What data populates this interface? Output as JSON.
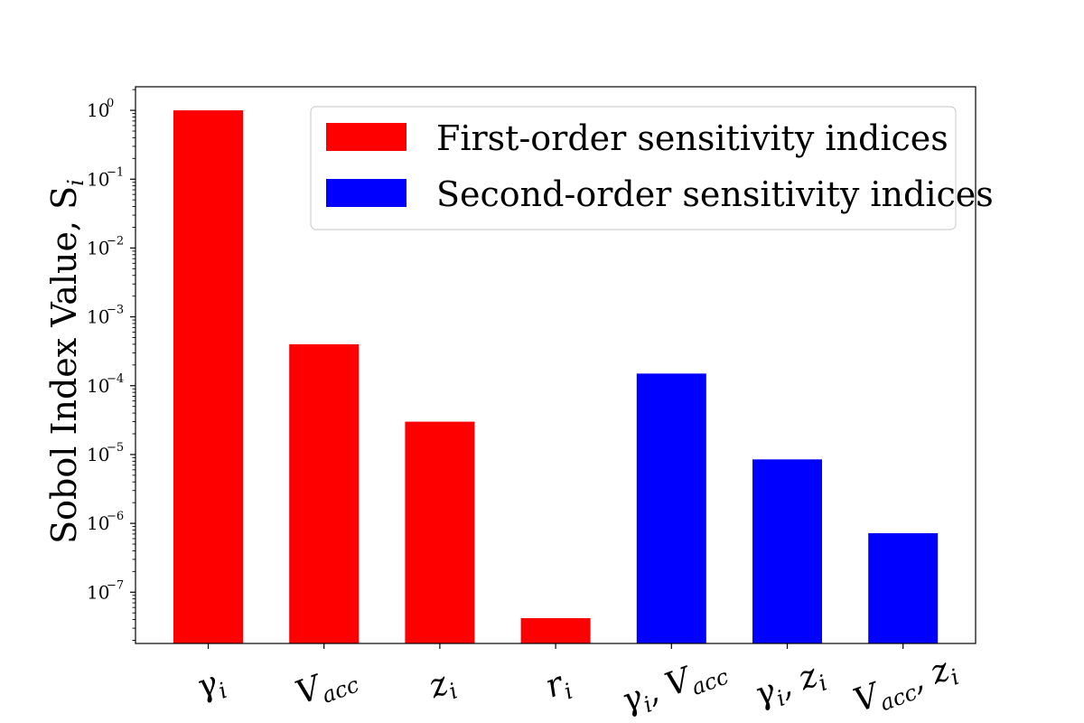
{
  "chart_data": {
    "type": "bar",
    "ylabel": "Sobol Index Value, S",
    "ylabel_sub": "i",
    "yscale": "log",
    "ylim": [
      1.8e-08,
      2.2
    ],
    "yticks": [
      {
        "base": "10",
        "exp": "0",
        "value": 1
      },
      {
        "base": "10",
        "exp": "−1",
        "value": 0.1
      },
      {
        "base": "10",
        "exp": "−2",
        "value": 0.01
      },
      {
        "base": "10",
        "exp": "−3",
        "value": 0.001
      },
      {
        "base": "10",
        "exp": "−4",
        "value": 0.0001
      },
      {
        "base": "10",
        "exp": "−5",
        "value": 1e-05
      },
      {
        "base": "10",
        "exp": "−6",
        "value": 1e-06
      },
      {
        "base": "10",
        "exp": "−7",
        "value": 1e-07
      }
    ],
    "categories": [
      "γi",
      "Vacc",
      "zi",
      "ri",
      "γi, Vacc",
      "γi, zi",
      "Vacc, zi"
    ],
    "series": [
      {
        "name": "First-order sensitivity indices",
        "color": "#ff0000",
        "values": [
          1.0,
          0.0004,
          3e-05,
          4.2e-08,
          null,
          null,
          null
        ]
      },
      {
        "name": "Second-order sensitivity indices",
        "color": "#0000ff",
        "values": [
          null,
          null,
          null,
          null,
          0.00015,
          8.5e-06,
          7.2e-07
        ]
      }
    ],
    "legend": {
      "position": "top-right"
    },
    "grid": false
  }
}
